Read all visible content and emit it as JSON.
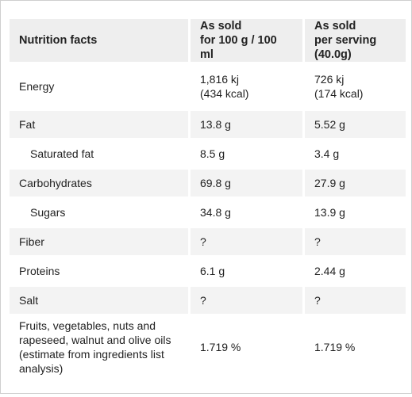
{
  "table": {
    "header": {
      "col1": "Nutrition facts",
      "col2_line1": "As sold",
      "col2_line2": "for 100 g / 100 ml",
      "col3_line1": "As sold",
      "col3_line2": "per serving (40.0g)"
    },
    "rows": [
      {
        "label": "Energy",
        "per100_line1": "1,816 kj",
        "per100_line2": "(434 kcal)",
        "serving_line1": "726 kj",
        "serving_line2": "(174 kcal)"
      },
      {
        "label": "Fat",
        "per100": "13.8 g",
        "serving": "5.52 g"
      },
      {
        "label": "Saturated fat",
        "per100": "8.5 g",
        "serving": "3.4 g"
      },
      {
        "label": "Carbohydrates",
        "per100": "69.8 g",
        "serving": "27.9 g"
      },
      {
        "label": "Sugars",
        "per100": "34.8 g",
        "serving": "13.9 g"
      },
      {
        "label": "Fiber",
        "per100": "?",
        "serving": "?"
      },
      {
        "label": "Proteins",
        "per100": "6.1 g",
        "serving": "2.44 g"
      },
      {
        "label": "Salt",
        "per100": "?",
        "serving": "?"
      },
      {
        "label": "Fruits, vegetables, nuts and rapeseed, walnut and olive oils (estimate from ingredients list analysis)",
        "per100": "1.719 %",
        "serving": "1.719 %"
      }
    ]
  }
}
